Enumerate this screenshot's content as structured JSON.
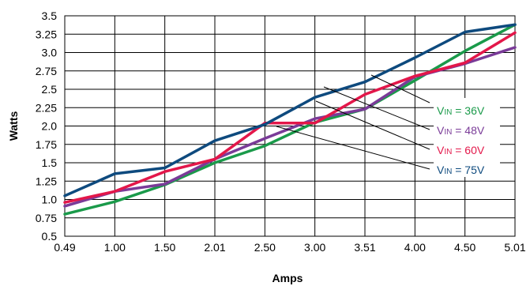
{
  "chart_data": {
    "type": "line",
    "xlabel": "Amps",
    "ylabel": "Watts",
    "x": [
      "0.49",
      "1.00",
      "1.50",
      "2.01",
      "2.50",
      "3.00",
      "3.51",
      "4.00",
      "4.50",
      "5.01"
    ],
    "yticks": [
      "0.5",
      "0.75",
      "1.0",
      "1.25",
      "1.5",
      "1.75",
      "2.0",
      "2.25",
      "2.5",
      "2.75",
      "3.0",
      "3.25",
      "3.5"
    ],
    "ylim": [
      0.5,
      3.5
    ],
    "grid": true,
    "legend_position": "right",
    "series": [
      {
        "name_prefix": "V",
        "name_sub": "IN",
        "name_suffix": " = 36V",
        "color": "#1a9a4a",
        "values": [
          0.8,
          0.97,
          1.2,
          1.5,
          1.73,
          2.05,
          2.23,
          2.62,
          3.02,
          3.38
        ]
      },
      {
        "name_prefix": "V",
        "name_sub": "IN",
        "name_suffix": " = 48V",
        "color": "#7a3b98",
        "values": [
          0.91,
          1.11,
          1.21,
          1.55,
          1.83,
          2.1,
          2.23,
          2.67,
          2.85,
          3.07
        ]
      },
      {
        "name_prefix": "V",
        "name_sub": "IN",
        "name_suffix": " = 60V",
        "color": "#e3174a",
        "values": [
          0.96,
          1.11,
          1.38,
          1.55,
          2.04,
          2.04,
          2.43,
          2.68,
          2.86,
          3.27
        ]
      },
      {
        "name_prefix": "V",
        "name_sub": "IN",
        "name_suffix": " = 75V",
        "color": "#0e4a7e",
        "values": [
          1.05,
          1.35,
          1.43,
          1.8,
          2.02,
          2.39,
          2.6,
          2.93,
          3.28,
          3.38
        ]
      }
    ]
  }
}
